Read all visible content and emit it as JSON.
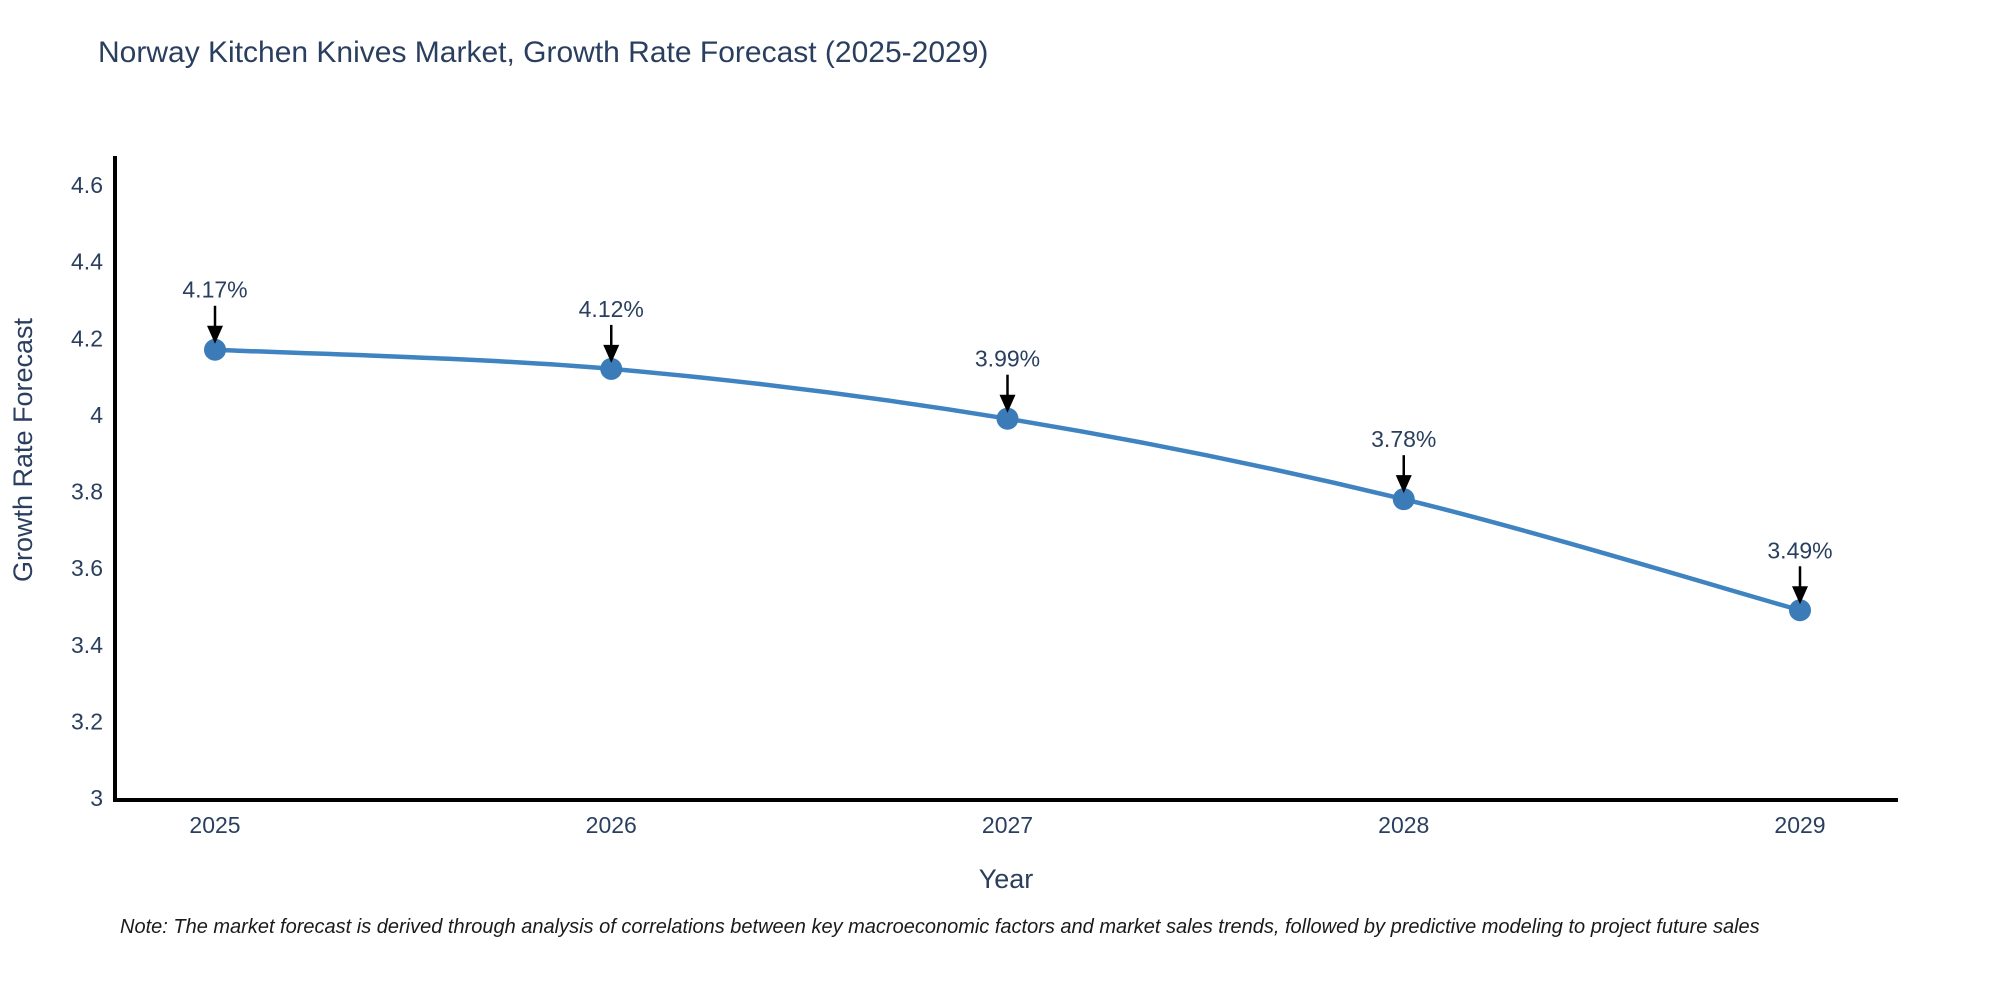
{
  "title": "Norway Kitchen Knives Market, Growth Rate Forecast (2025-2029)",
  "note": "Note: The market forecast is derived through analysis of correlations between key macroeconomic factors and market sales trends, followed by predictive modeling to project future sales",
  "chart_data": {
    "type": "line",
    "title": "Norway Kitchen Knives Market, Growth Rate Forecast (2025-2029)",
    "xlabel": "Year",
    "ylabel": "Growth Rate Forecast",
    "categories": [
      "2025",
      "2026",
      "2027",
      "2028",
      "2029"
    ],
    "values": [
      4.17,
      4.12,
      3.99,
      3.78,
      3.49
    ],
    "point_labels": [
      "4.17%",
      "4.12%",
      "3.99%",
      "3.78%",
      "3.49%"
    ],
    "ylim": [
      3,
      4.6
    ],
    "yticks": [
      "3",
      "3.2",
      "3.4",
      "3.6",
      "3.8",
      "4",
      "4.2",
      "4.4",
      "4.6"
    ],
    "grid": false,
    "legend": "none",
    "line_shape": "spline",
    "annotations": "black arrows pointing down at each data point",
    "colors": {
      "line": "#3f83c1",
      "marker": "#3b7cb8",
      "axis": "#000000",
      "arrow": "#000000",
      "tick_text": "#2a3f5f",
      "title_text": "#2a3f5f",
      "note_text": "#1a1a1a"
    }
  }
}
